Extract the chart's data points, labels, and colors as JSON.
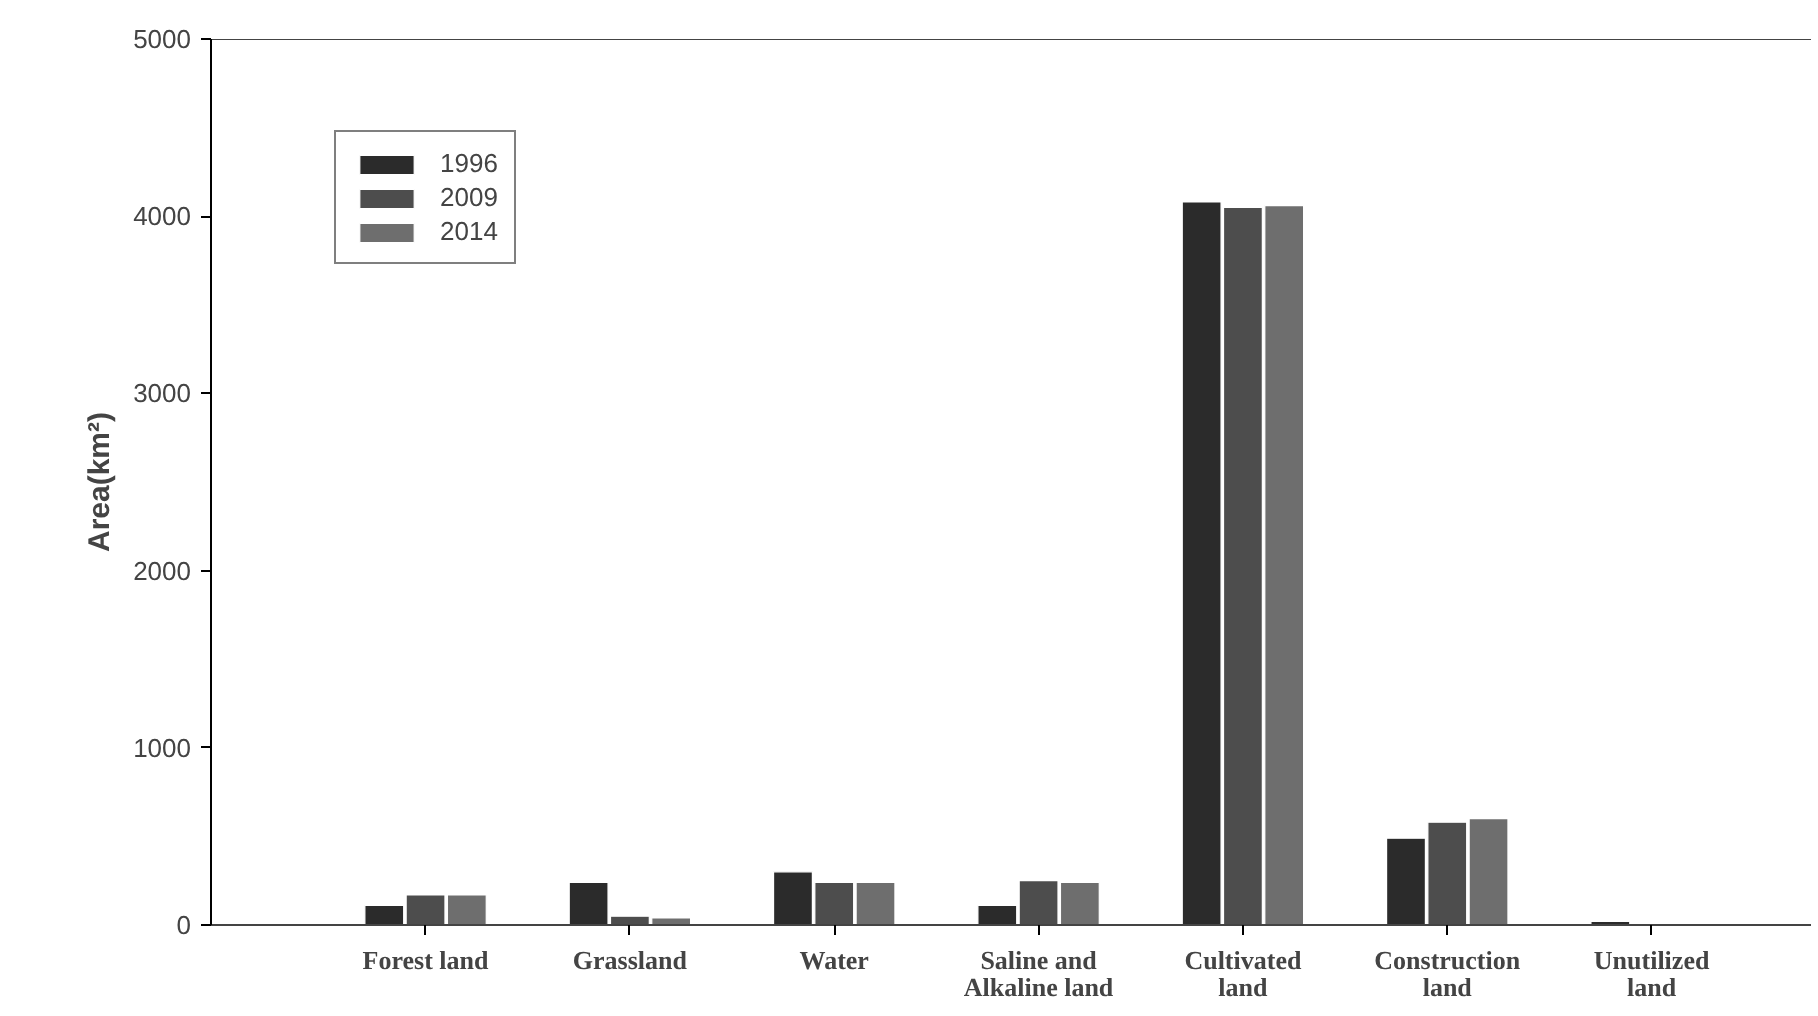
{
  "chart_data": {
    "type": "bar",
    "ylabel": "Area(km²)",
    "categories": [
      "Forest land",
      "Grassland",
      "Water",
      "Saline and Alkaline land",
      "Cultivated land",
      "Construction land",
      "Unutilized land"
    ],
    "series": [
      {
        "name": "1996",
        "color": "#2b2b2b",
        "values": [
          110,
          240,
          300,
          110,
          4080,
          490,
          20
        ]
      },
      {
        "name": "2009",
        "color": "#4d4d4d",
        "values": [
          170,
          50,
          240,
          250,
          4050,
          580,
          null
        ]
      },
      {
        "name": "2014",
        "color": "#6e6e6e",
        "values": [
          170,
          40,
          240,
          240,
          4060,
          600,
          null
        ]
      }
    ],
    "ylim": [
      0,
      5000
    ],
    "yticks": [
      0,
      1000,
      2000,
      3000,
      4000,
      5000
    ],
    "grid": false,
    "legend": "top left"
  }
}
